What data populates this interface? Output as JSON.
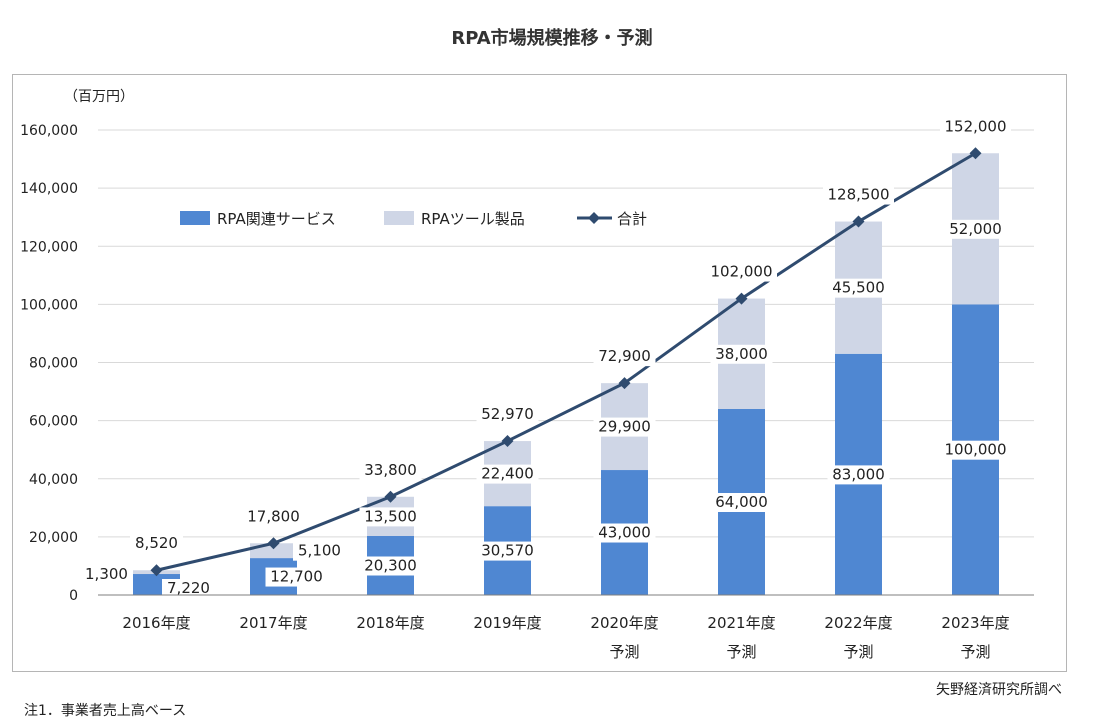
{
  "title": "RPA市場規模推移・予測",
  "source": "矢野経済研究所調べ",
  "note": "注1．事業者売上高ベース",
  "colors": {
    "services": "#4f87d2",
    "products": "#cfd6e6",
    "total": "#2f4b6f",
    "grid": "#d9d9d9"
  },
  "chart_data": {
    "type": "bar",
    "stacked": true,
    "unit_label": "（百万円）",
    "categories": [
      "2016年度",
      "2017年度",
      "2018年度",
      "2019年度",
      "2020年度",
      "2021年度",
      "2022年度",
      "2023年度"
    ],
    "category_sublabels": [
      "",
      "",
      "",
      "",
      "予測",
      "予測",
      "予測",
      "予測"
    ],
    "ylim": [
      0,
      160000
    ],
    "yticks": [
      0,
      20000,
      40000,
      60000,
      80000,
      100000,
      120000,
      140000,
      160000
    ],
    "ytick_labels": [
      "0",
      "20,000",
      "40,000",
      "60,000",
      "80,000",
      "100,000",
      "120,000",
      "140,000",
      "160,000"
    ],
    "grid": true,
    "legend_position": "top-left",
    "series": [
      {
        "name": "RPA関連サービス",
        "type": "bar",
        "values": [
          7220,
          12700,
          20300,
          30570,
          43000,
          64000,
          83000,
          100000
        ],
        "labels": [
          "7,220",
          "12,700",
          "20,300",
          "30,570",
          "43,000",
          "64,000",
          "83,000",
          "100,000"
        ]
      },
      {
        "name": "RPAツール製品",
        "type": "bar",
        "values": [
          1300,
          5100,
          13500,
          22400,
          29900,
          38000,
          45500,
          52000
        ],
        "labels": [
          "1,300",
          "5,100",
          "13,500",
          "22,400",
          "29,900",
          "38,000",
          "45,500",
          "52,000"
        ]
      },
      {
        "name": "合計",
        "type": "line",
        "values": [
          8520,
          17800,
          33800,
          52970,
          72900,
          102000,
          128500,
          152000
        ],
        "labels": [
          "8,520",
          "17,800",
          "33,800",
          "52,970",
          "72,900",
          "102,000",
          "128,500",
          "152,000"
        ]
      }
    ]
  }
}
